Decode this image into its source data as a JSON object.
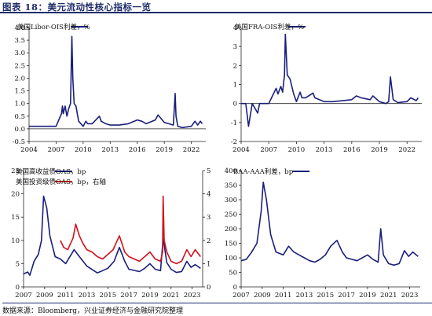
{
  "figure": {
    "title": "图表 18：美元流动性核心指标一览",
    "source": "数据来源：Bloomberg，兴业证券经济与金融研究院整理"
  },
  "colors": {
    "navy": "#1a1f7a",
    "red": "#d0101a",
    "axis": "#222222"
  },
  "chart_data": [
    {
      "type": "line",
      "title": "",
      "ylim": [
        -0.5,
        4.0
      ],
      "y_ticks": [
        -0.5,
        0.0,
        0.5,
        1.0,
        1.5,
        2.0,
        2.5,
        3.0,
        3.5,
        4.0
      ],
      "y_tick_labels": [
        "-0.5",
        "0.0",
        "0.5",
        "1.0",
        "1.5",
        "2.0",
        "2.5",
        "3.0",
        "3.5",
        "4.0"
      ],
      "xlim": [
        2004.0,
        2023.6
      ],
      "x_ticks": [
        2004,
        2007,
        2010,
        2013,
        2016,
        2019,
        2022
      ],
      "x_tick_labels": [
        "2004",
        "2007",
        "2010",
        "2013",
        "2016",
        "2019",
        "2022"
      ],
      "legend_placement": "top-center",
      "series": [
        {
          "name": "美国Libor-OIS利差，%",
          "color": "#1a1f7a",
          "x": [
            2004.0,
            2005.0,
            2006.0,
            2007.0,
            2007.6,
            2007.7,
            2007.8,
            2008.0,
            2008.2,
            2008.4,
            2008.6,
            2008.75,
            2008.85,
            2009.0,
            2009.2,
            2009.5,
            2010.0,
            2010.3,
            2010.5,
            2011.0,
            2011.8,
            2012.0,
            2012.5,
            2013.0,
            2014.0,
            2015.0,
            2016.0,
            2016.5,
            2017.0,
            2018.0,
            2018.3,
            2019.0,
            2019.5,
            2020.0,
            2020.2,
            2020.3,
            2020.5,
            2021.0,
            2022.0,
            2022.4,
            2022.7,
            2023.0,
            2023.2
          ],
          "y": [
            0.1,
            0.1,
            0.1,
            0.1,
            0.6,
            0.9,
            0.6,
            0.9,
            0.5,
            0.8,
            1.0,
            3.65,
            2.0,
            1.0,
            0.9,
            0.3,
            0.1,
            0.3,
            0.2,
            0.2,
            0.5,
            0.3,
            0.2,
            0.15,
            0.15,
            0.2,
            0.35,
            0.3,
            0.2,
            0.35,
            0.55,
            0.25,
            0.2,
            0.15,
            1.4,
            0.5,
            0.1,
            0.05,
            0.1,
            0.3,
            0.15,
            0.3,
            0.2
          ]
        }
      ]
    },
    {
      "type": "line",
      "title": "",
      "ylim": [
        -2,
        4
      ],
      "y_ticks": [
        -2,
        -1,
        0,
        1,
        2,
        3,
        4
      ],
      "y_tick_labels": [
        "-2",
        "-1",
        "0",
        "1",
        "2",
        "3",
        "4"
      ],
      "xlim": [
        2004.0,
        2023.6
      ],
      "x_ticks": [
        2004,
        2007,
        2010,
        2013,
        2016,
        2019,
        2022
      ],
      "x_tick_labels": [
        "2004",
        "2007",
        "2010",
        "2013",
        "2016",
        "2019",
        "2022"
      ],
      "legend_placement": "top-center",
      "series": [
        {
          "name": "美国FRA-OIS利差，%",
          "color": "#1a1f7a",
          "x": [
            2004.0,
            2004.5,
            2004.8,
            2005.2,
            2005.8,
            2006.0,
            2007.0,
            2007.6,
            2007.8,
            2008.0,
            2008.3,
            2008.5,
            2008.7,
            2008.8,
            2009.0,
            2009.3,
            2009.7,
            2010.0,
            2010.4,
            2010.6,
            2011.0,
            2011.8,
            2012.0,
            2013.0,
            2014.0,
            2016.0,
            2016.5,
            2017.0,
            2018.0,
            2018.3,
            2019.0,
            2019.7,
            2020.0,
            2020.2,
            2020.5,
            2021.0,
            2022.0,
            2022.4,
            2023.0,
            2023.2
          ],
          "y": [
            0.0,
            0.0,
            -1.2,
            0.0,
            -0.5,
            0.0,
            0.0,
            0.6,
            0.8,
            0.5,
            0.9,
            0.6,
            1.5,
            3.65,
            1.5,
            1.3,
            0.5,
            0.1,
            0.6,
            0.3,
            0.3,
            0.55,
            0.3,
            0.1,
            0.1,
            0.2,
            0.4,
            0.3,
            0.2,
            0.4,
            0.1,
            0.0,
            0.1,
            1.4,
            0.2,
            0.05,
            0.1,
            0.3,
            0.15,
            0.3
          ]
        }
      ]
    },
    {
      "type": "line",
      "title": "",
      "ylim": [
        0,
        25
      ],
      "y_ticks": [
        0,
        5,
        10,
        15,
        20,
        25
      ],
      "y_tick_labels": [
        "0",
        "5",
        "10",
        "15",
        "20",
        "25"
      ],
      "y2lim": [
        0,
        5
      ],
      "y2_ticks": [
        0,
        1,
        2,
        3,
        4,
        5
      ],
      "y2_tick_labels": [
        "0",
        "1",
        "2",
        "3",
        "4",
        "5"
      ],
      "xlim": [
        2007.0,
        2024.0
      ],
      "x_ticks": [
        2007,
        2009,
        2011,
        2013,
        2015,
        2017,
        2019,
        2021,
        2023
      ],
      "x_tick_labels": [
        "2007",
        "2009",
        "2011",
        "2013",
        "2015",
        "2017",
        "2019",
        "2021",
        "2023"
      ],
      "legend_placement": "top-left",
      "series": [
        {
          "name": "美国高收益债OAS，bp",
          "color": "#1a1f7a",
          "axis": "left",
          "x": [
            2007.0,
            2007.4,
            2007.6,
            2008.0,
            2008.4,
            2008.7,
            2008.9,
            2009.2,
            2009.5,
            2010.0,
            2010.5,
            2011.0,
            2011.8,
            2012.3,
            2013.0,
            2014.0,
            2014.5,
            2015.0,
            2015.6,
            2016.1,
            2016.6,
            2017.0,
            2018.0,
            2018.5,
            2019.0,
            2019.5,
            2020.0,
            2020.25,
            2020.6,
            2021.0,
            2021.5,
            2022.0,
            2022.5,
            2022.9,
            2023.3,
            2023.8
          ],
          "y": [
            2.8,
            3.2,
            2.5,
            5.5,
            7.0,
            10.0,
            19.5,
            17.0,
            11.0,
            6.5,
            6.0,
            5.0,
            8.0,
            6.5,
            4.5,
            3.0,
            3.5,
            4.0,
            5.5,
            8.5,
            5.5,
            3.8,
            3.3,
            4.0,
            5.0,
            3.8,
            3.5,
            10.5,
            5.2,
            3.8,
            3.1,
            3.3,
            5.5,
            4.2,
            4.8,
            4.0
          ]
        },
        {
          "name": "美国投资级债OAS，bp，右轴",
          "color": "#d0101a",
          "axis": "right",
          "x": [
            2010.5,
            2010.8,
            2011.2,
            2011.7,
            2011.95,
            2012.3,
            2012.6,
            2013.0,
            2013.5,
            2014.0,
            2014.5,
            2015.0,
            2015.5,
            2016.1,
            2016.6,
            2017.0,
            2018.0,
            2018.5,
            2019.0,
            2019.5,
            2020.0,
            2020.2,
            2020.25,
            2020.35,
            2020.6,
            2021.0,
            2021.5,
            2022.0,
            2022.5,
            2022.9,
            2023.3,
            2023.8
          ],
          "y": [
            2.0,
            1.7,
            1.6,
            2.1,
            2.7,
            2.2,
            1.9,
            1.6,
            1.5,
            1.3,
            1.2,
            1.4,
            1.6,
            2.2,
            1.5,
            1.3,
            1.1,
            1.3,
            1.5,
            1.2,
            1.1,
            1.5,
            3.9,
            2.0,
            1.5,
            1.1,
            1.0,
            1.1,
            1.6,
            1.3,
            1.6,
            1.3
          ]
        }
      ]
    },
    {
      "type": "line",
      "title": "",
      "ylim": [
        0,
        400
      ],
      "y_ticks": [
        0,
        50,
        100,
        150,
        200,
        250,
        300,
        350,
        400
      ],
      "y_tick_labels": [
        "0",
        "50",
        "100",
        "150",
        "200",
        "250",
        "300",
        "350",
        "400"
      ],
      "xlim": [
        2007.0,
        2024.0
      ],
      "x_ticks": [
        2007,
        2009,
        2011,
        2013,
        2015,
        2017,
        2019,
        2021,
        2023
      ],
      "x_tick_labels": [
        "2007",
        "2009",
        "2011",
        "2013",
        "2015",
        "2017",
        "2019",
        "2021",
        "2023"
      ],
      "legend_placement": "top-center",
      "series": [
        {
          "name": "BAA-AAA利差，bp",
          "color": "#1a1f7a",
          "x": [
            2007.0,
            2007.5,
            2008.0,
            2008.5,
            2008.9,
            2009.1,
            2009.4,
            2009.8,
            2010.3,
            2011.0,
            2011.5,
            2012.0,
            2012.5,
            2013.0,
            2013.5,
            2014.0,
            2014.5,
            2015.0,
            2015.5,
            2016.1,
            2016.6,
            2017.0,
            2018.0,
            2018.5,
            2019.0,
            2019.5,
            2020.0,
            2020.25,
            2020.5,
            2021.0,
            2021.5,
            2022.0,
            2022.5,
            2022.9,
            2023.3,
            2023.8
          ],
          "y": [
            90,
            95,
            120,
            150,
            260,
            360,
            300,
            180,
            120,
            110,
            140,
            120,
            110,
            100,
            90,
            85,
            95,
            110,
            140,
            160,
            120,
            100,
            90,
            100,
            110,
            95,
            85,
            200,
            110,
            80,
            75,
            80,
            125,
            105,
            120,
            105
          ]
        }
      ]
    }
  ]
}
